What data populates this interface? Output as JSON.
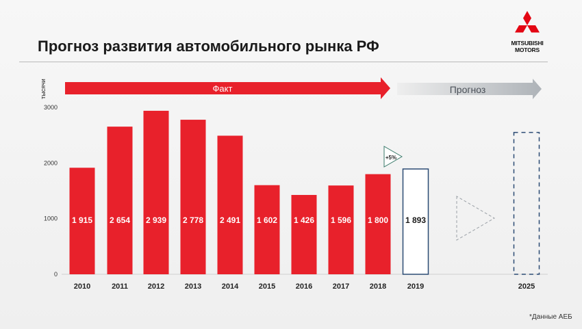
{
  "slide": {
    "title": "Прогноз развития автомобильного рынка РФ",
    "logo_line1": "MITSUBISHI",
    "logo_line2": "MOTORS",
    "footnote": "*Данные АЕБ",
    "fact_arrow_label": "Факт",
    "forecast_arrow_label": "Прогноз",
    "growth_badge": "+5%"
  },
  "colors": {
    "fact_bar": "#e8212b",
    "forecast_outline": "#2a4a73",
    "fact_arrow": "#e8212b",
    "forecast_arrow": "#b4b8bd",
    "logo_red": "#e30613"
  },
  "chart_data": {
    "type": "bar",
    "ylabel": "тысячи",
    "xlabel": "",
    "ylim": [
      0,
      3000
    ],
    "yticks": [
      0,
      1000,
      2000,
      3000
    ],
    "grid": false,
    "categories": [
      "2010",
      "2011",
      "2012",
      "2013",
      "2014",
      "2015",
      "2016",
      "2017",
      "2018",
      "2019",
      "2025"
    ],
    "values": [
      1915,
      2654,
      2939,
      2778,
      2491,
      1602,
      1426,
      1596,
      1800,
      1893,
      2550
    ],
    "value_labels": [
      "1 915",
      "2 654",
      "2 939",
      "2 778",
      "2 491",
      "1 602",
      "1 426",
      "1 596",
      "1 800",
      "1 893",
      ""
    ],
    "bar_styles": [
      "fact",
      "fact",
      "fact",
      "fact",
      "fact",
      "fact",
      "fact",
      "fact",
      "fact",
      "forecast",
      "forecast-dashed"
    ]
  }
}
